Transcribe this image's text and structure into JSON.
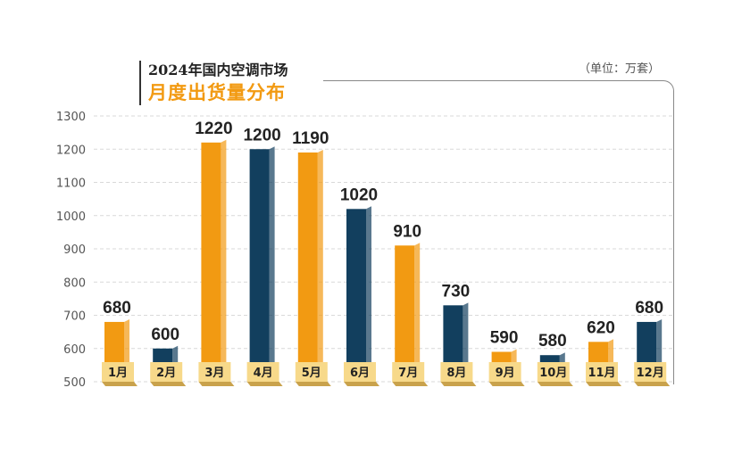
{
  "title": {
    "line1": "2024年国内空调市场",
    "line2": "月度出货量分布"
  },
  "unit_label": "（单位：万套）",
  "colors": {
    "orange": "#f29a12",
    "navy": "#123f5e",
    "label_bg": "#f7d98a",
    "grid": "#d9d9d9"
  },
  "chart_data": {
    "type": "bar",
    "title": "2024年国内空调市场 月度出货量分布",
    "xlabel": "",
    "ylabel": "",
    "unit": "万套",
    "ylim": [
      500,
      1300
    ],
    "yticks": [
      500,
      600,
      700,
      800,
      900,
      1000,
      1100,
      1200,
      1300
    ],
    "categories": [
      "1月",
      "2月",
      "3月",
      "4月",
      "5月",
      "6月",
      "7月",
      "8月",
      "9月",
      "10月",
      "11月",
      "12月"
    ],
    "values": [
      680,
      600,
      1220,
      1200,
      1190,
      1020,
      910,
      730,
      590,
      580,
      620,
      680
    ],
    "bar_colors": [
      "orange",
      "navy",
      "orange",
      "navy",
      "orange",
      "navy",
      "orange",
      "navy",
      "orange",
      "navy",
      "orange",
      "navy"
    ],
    "grid": true,
    "legend": "none"
  }
}
